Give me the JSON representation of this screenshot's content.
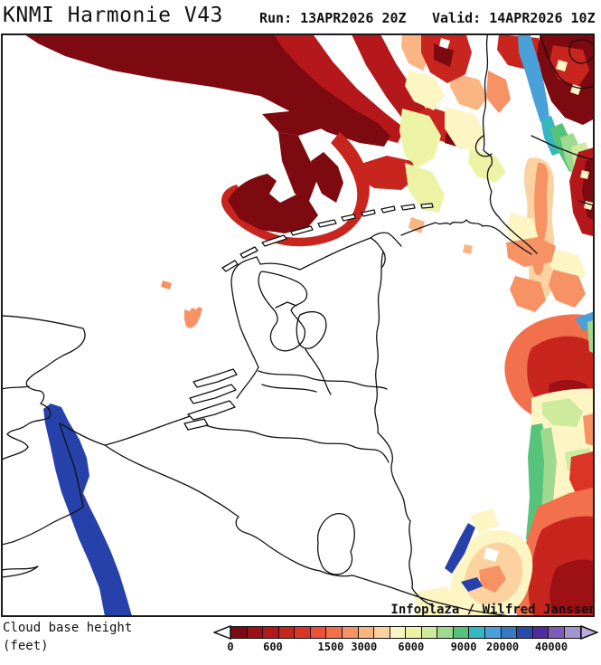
{
  "header": {
    "title": "KNMI Harmonie V43",
    "run_label": "Run: 13APR2026 20Z",
    "valid_label": "Valid: 14APR2026 10Z"
  },
  "map": {
    "attribution": "Infoplaza / Wilfred Janssen",
    "border_color": "#1a1a1a",
    "sea_land_color": "#ffffff",
    "low_cloud_color": "#7c0a10",
    "high_cloud_color": "#a295cf",
    "rain_band_color": "#2741ab"
  },
  "legend": {
    "title_line1": "Cloud base height",
    "title_line2": "(feet)",
    "left_arrow_color": "#ffffff",
    "right_arrow_color": "#b9aede",
    "colors": [
      "#7c0a10",
      "#9d1014",
      "#b5181a",
      "#c9251f",
      "#dc3528",
      "#ea5138",
      "#f2714c",
      "#f79264",
      "#fab583",
      "#fcd3a0",
      "#fdf5c3",
      "#ecf3a5",
      "#cdea9d",
      "#9fd98f",
      "#55c37a",
      "#35b6c1",
      "#4aa0d8",
      "#3b78c2",
      "#2b4bab",
      "#502b9e",
      "#7b5cb6",
      "#a295cf"
    ],
    "ticks": [
      {
        "label": "0",
        "pct": 0
      },
      {
        "label": "600",
        "pct": 12.1
      },
      {
        "label": "1500",
        "pct": 28.6
      },
      {
        "label": "3000",
        "pct": 38.1
      },
      {
        "label": "6000",
        "pct": 51.5
      },
      {
        "label": "9000",
        "pct": 66.5
      },
      {
        "label": "20000",
        "pct": 77.6
      },
      {
        "label": "40000",
        "pct": 91.5
      }
    ]
  }
}
